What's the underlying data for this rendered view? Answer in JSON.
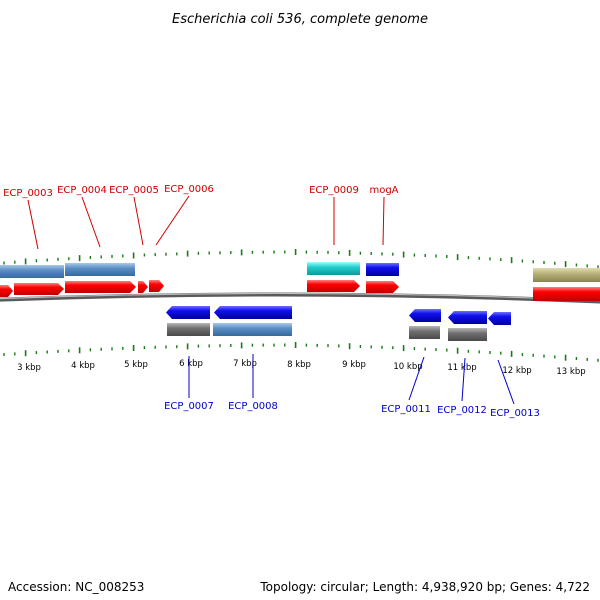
{
  "title": "Escherichia coli 536, complete genome",
  "footer": {
    "accession": "Accession: NC_008253",
    "summary": "Topology: circular; Length: 4,938,920 bp; Genes: 4,722"
  },
  "colors": {
    "forward_label": "#cc0000",
    "reverse_label": "#0000cc",
    "tick": "#1a7a1a",
    "backbone": "#888888",
    "cds_forward": "#ff0000",
    "cds_reverse": "#0000ee",
    "feature_steelblue": "#5b8fc4",
    "feature_cyan": "#22cccc",
    "feature_gray": "#707070",
    "feature_olive": "#b8b27a"
  },
  "ticks": [
    "3 kbp",
    "4 kbp",
    "5 kbp",
    "6 kbp",
    "7 kbp",
    "8 kbp",
    "9 kbp",
    "10 kbp",
    "11 kbp",
    "12 kbp",
    "13 kbp"
  ],
  "forward_genes": [
    "ECP_0003",
    "ECP_0004",
    "ECP_0005",
    "ECP_0006",
    "ECP_0009",
    "mogA"
  ],
  "reverse_genes": [
    "ECP_0007",
    "ECP_0008",
    "ECP_0011",
    "ECP_0012",
    "ECP_0013"
  ]
}
